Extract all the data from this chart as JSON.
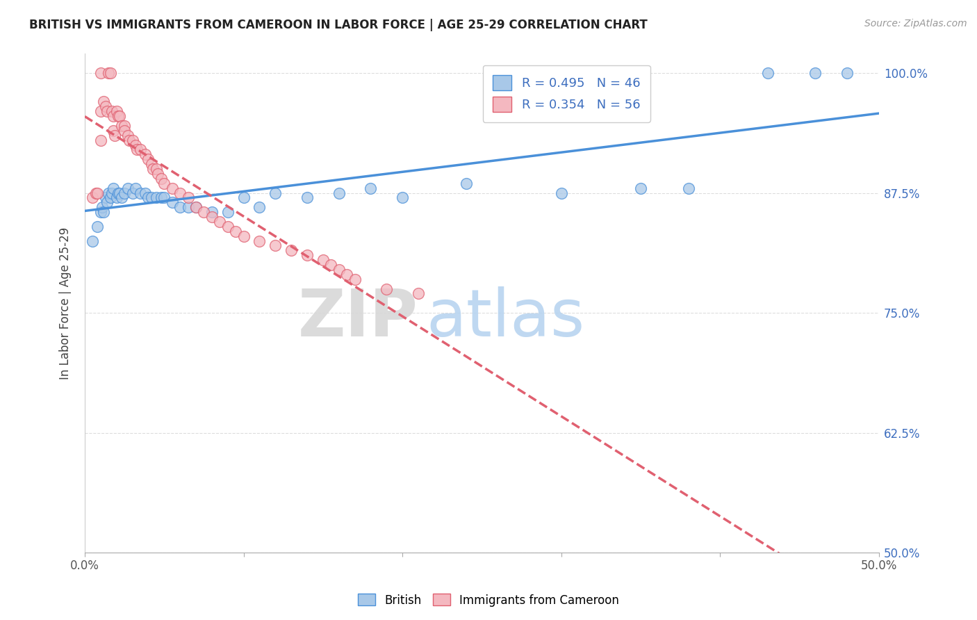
{
  "title": "BRITISH VS IMMIGRANTS FROM CAMEROON IN LABOR FORCE | AGE 25-29 CORRELATION CHART",
  "source": "Source: ZipAtlas.com",
  "ylabel": "In Labor Force | Age 25-29",
  "xlabel": "",
  "watermark_zip": "ZIP",
  "watermark_atlas": "atlas",
  "british_R": 0.495,
  "british_N": 46,
  "cameroon_R": 0.354,
  "cameroon_N": 56,
  "british_color": "#a8c8e8",
  "cameroon_color": "#f4b8c0",
  "british_line_color": "#4a90d9",
  "cameroon_line_color": "#e06070",
  "xmin": 0.0,
  "xmax": 0.5,
  "ymin": 0.5,
  "ymax": 1.02,
  "yticks": [
    0.5,
    0.625,
    0.75,
    0.875,
    1.0
  ],
  "ytick_labels": [
    "50.0%",
    "62.5%",
    "75.0%",
    "87.5%",
    "100.0%"
  ],
  "xticks": [
    0.0,
    0.1,
    0.2,
    0.3,
    0.4,
    0.5
  ],
  "xtick_labels": [
    "0.0%",
    "",
    "",
    "",
    "",
    "50.0%"
  ],
  "british_x": [
    0.005,
    0.008,
    0.01,
    0.011,
    0.012,
    0.013,
    0.014,
    0.015,
    0.016,
    0.017,
    0.018,
    0.02,
    0.021,
    0.022,
    0.023,
    0.025,
    0.027,
    0.03,
    0.032,
    0.035,
    0.038,
    0.04,
    0.042,
    0.045,
    0.048,
    0.05,
    0.055,
    0.06,
    0.065,
    0.07,
    0.08,
    0.09,
    0.1,
    0.11,
    0.12,
    0.14,
    0.16,
    0.18,
    0.2,
    0.24,
    0.3,
    0.35,
    0.38,
    0.43,
    0.46,
    0.48
  ],
  "british_y": [
    0.825,
    0.84,
    0.855,
    0.86,
    0.855,
    0.87,
    0.865,
    0.875,
    0.87,
    0.875,
    0.88,
    0.87,
    0.875,
    0.875,
    0.87,
    0.875,
    0.88,
    0.875,
    0.88,
    0.875,
    0.875,
    0.87,
    0.87,
    0.87,
    0.87,
    0.87,
    0.865,
    0.86,
    0.86,
    0.86,
    0.855,
    0.855,
    0.87,
    0.86,
    0.875,
    0.87,
    0.875,
    0.88,
    0.87,
    0.885,
    0.875,
    0.88,
    0.88,
    1.0,
    1.0,
    1.0
  ],
  "cameroon_x": [
    0.005,
    0.007,
    0.008,
    0.01,
    0.01,
    0.01,
    0.012,
    0.013,
    0.014,
    0.015,
    0.016,
    0.017,
    0.018,
    0.018,
    0.019,
    0.02,
    0.021,
    0.022,
    0.023,
    0.025,
    0.025,
    0.027,
    0.028,
    0.03,
    0.032,
    0.033,
    0.035,
    0.038,
    0.04,
    0.042,
    0.043,
    0.045,
    0.046,
    0.048,
    0.05,
    0.055,
    0.06,
    0.065,
    0.07,
    0.075,
    0.08,
    0.085,
    0.09,
    0.095,
    0.1,
    0.11,
    0.12,
    0.13,
    0.14,
    0.15,
    0.155,
    0.16,
    0.165,
    0.17,
    0.19,
    0.21
  ],
  "cameroon_y": [
    0.87,
    0.875,
    0.875,
    0.93,
    0.96,
    1.0,
    0.97,
    0.965,
    0.96,
    1.0,
    1.0,
    0.96,
    0.955,
    0.94,
    0.935,
    0.96,
    0.955,
    0.955,
    0.945,
    0.945,
    0.94,
    0.935,
    0.93,
    0.93,
    0.925,
    0.92,
    0.92,
    0.915,
    0.91,
    0.905,
    0.9,
    0.9,
    0.895,
    0.89,
    0.885,
    0.88,
    0.875,
    0.87,
    0.86,
    0.855,
    0.85,
    0.845,
    0.84,
    0.835,
    0.83,
    0.825,
    0.82,
    0.815,
    0.81,
    0.805,
    0.8,
    0.795,
    0.79,
    0.785,
    0.775,
    0.77
  ]
}
